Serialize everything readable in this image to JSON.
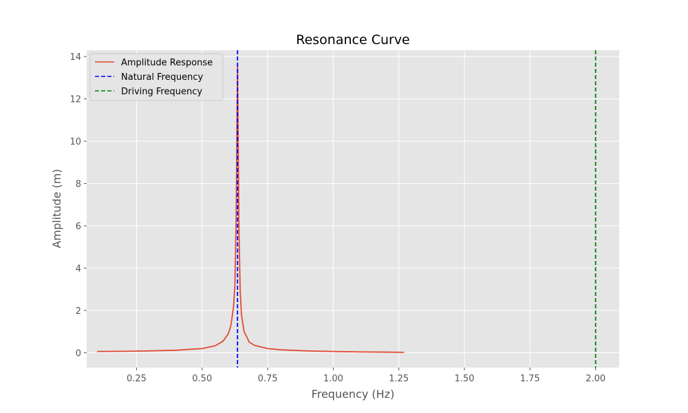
{
  "chart_data": {
    "type": "line",
    "title": "Resonance Curve",
    "xlabel": "Frequency (Hz)",
    "ylabel": "Amplitude (m)",
    "xlim": [
      0.06,
      2.09
    ],
    "ylim": [
      -0.7,
      14.3
    ],
    "grid": true,
    "legend_position": "top-left",
    "x_ticks": [
      {
        "value": 0.25,
        "label": "0.25"
      },
      {
        "value": 0.5,
        "label": "0.50"
      },
      {
        "value": 0.75,
        "label": "0.75"
      },
      {
        "value": 1.0,
        "label": "1.00"
      },
      {
        "value": 1.25,
        "label": "1.25"
      },
      {
        "value": 1.5,
        "label": "1.50"
      },
      {
        "value": 1.75,
        "label": "1.75"
      },
      {
        "value": 2.0,
        "label": "2.00"
      }
    ],
    "y_ticks": [
      {
        "value": 0,
        "label": "0"
      },
      {
        "value": 2,
        "label": "2"
      },
      {
        "value": 4,
        "label": "4"
      },
      {
        "value": 6,
        "label": "6"
      },
      {
        "value": 8,
        "label": "8"
      },
      {
        "value": 10,
        "label": "10"
      },
      {
        "value": 12,
        "label": "12"
      },
      {
        "value": 14,
        "label": "14"
      }
    ],
    "series": [
      {
        "name": "Amplitude Response",
        "color": "#E24A33",
        "style": "solid",
        "x": [
          0.1,
          0.2,
          0.3,
          0.4,
          0.45,
          0.5,
          0.55,
          0.58,
          0.6,
          0.61,
          0.62,
          0.625,
          0.63,
          0.633,
          0.635,
          0.637,
          0.64,
          0.645,
          0.65,
          0.66,
          0.68,
          0.7,
          0.75,
          0.8,
          0.9,
          1.0,
          1.1,
          1.2,
          1.27
        ],
        "y": [
          0.06,
          0.07,
          0.09,
          0.12,
          0.16,
          0.2,
          0.33,
          0.55,
          0.9,
          1.3,
          2.2,
          3.2,
          6.5,
          11.0,
          13.6,
          11.0,
          6.2,
          3.0,
          1.8,
          1.0,
          0.5,
          0.35,
          0.2,
          0.14,
          0.09,
          0.06,
          0.04,
          0.03,
          0.02
        ]
      },
      {
        "name": "Natural Frequency",
        "color": "#0000FF",
        "style": "dashed",
        "vline_x": 0.635
      },
      {
        "name": "Driving Frequency",
        "color": "#008000",
        "style": "dashed",
        "vline_x": 2.0
      }
    ]
  },
  "colors": {
    "plot_background": "#E5E5E5",
    "grid": "#FFFFFF",
    "text": "#000000",
    "tick_text": "#555555"
  }
}
